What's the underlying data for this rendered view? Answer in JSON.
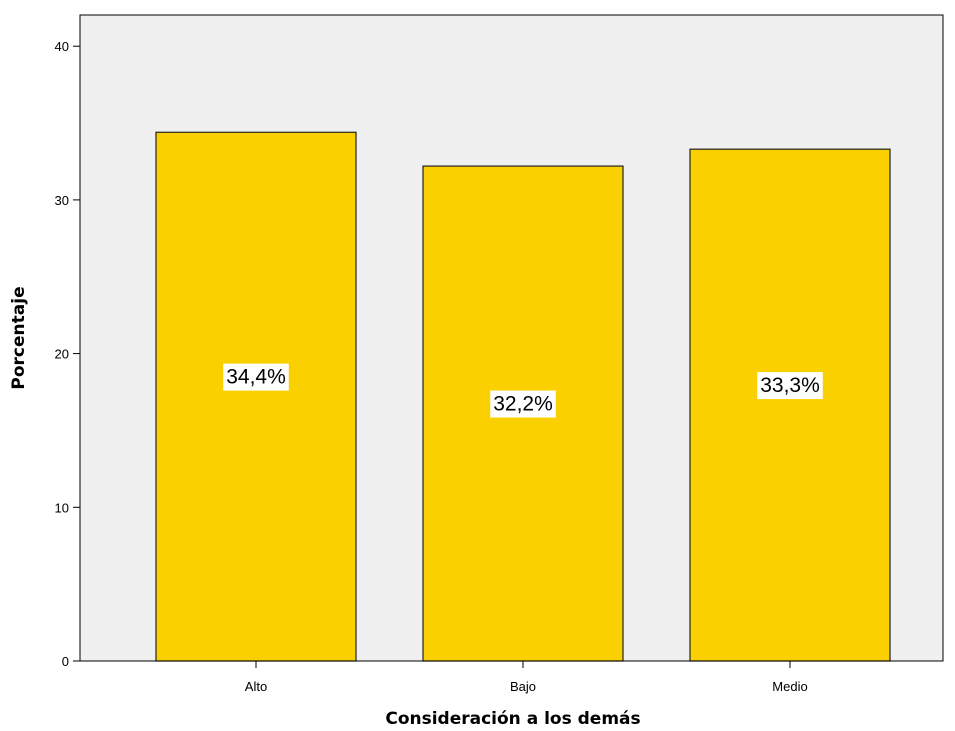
{
  "chart_data": {
    "type": "bar",
    "categories": [
      "Alto",
      "Bajo",
      "Medio"
    ],
    "values": [
      34.4,
      32.2,
      33.3
    ],
    "data_labels": [
      "34,4%",
      "32,2%",
      "33,3%"
    ],
    "xlabel": "Consideración a los demás",
    "ylabel": "Porcentaje",
    "ylim": [
      0,
      42
    ],
    "yticks": [
      0,
      10,
      20,
      30,
      40
    ],
    "ytick_labels": [
      "0",
      "10",
      "20",
      "30",
      "40"
    ],
    "grid": false,
    "colors": {
      "bar": "#FAD000",
      "bar_edge": "#222222",
      "plot_background": "#F0F0F0"
    }
  }
}
